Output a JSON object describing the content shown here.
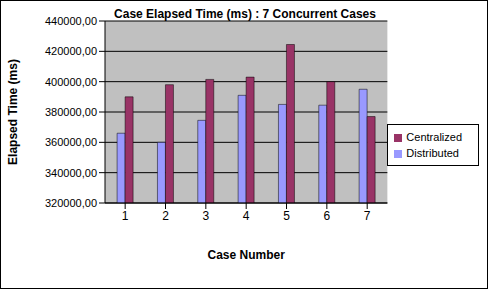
{
  "chart_data": {
    "type": "bar",
    "title": "Case Elapsed Time (ms) : 7 Concurrent Cases",
    "x_label": "Case Number",
    "y_label": "Elapsed Time (ms)",
    "categories": [
      "1",
      "2",
      "3",
      "4",
      "5",
      "6",
      "7"
    ],
    "series": [
      {
        "name": "Distributed",
        "color": "#9999ff",
        "values": [
          366000,
          360000,
          374500,
          391000,
          385000,
          384500,
          395000
        ]
      },
      {
        "name": "Centralized",
        "color": "#993366",
        "values": [
          390000,
          398000,
          401500,
          403000,
          424500,
          400000,
          377000
        ]
      }
    ],
    "ylim": [
      320000,
      440000
    ],
    "yticks": [
      {
        "value": 320000,
        "label": "320000,00"
      },
      {
        "value": 340000,
        "label": "340000,00"
      },
      {
        "value": 360000,
        "label": "360000,00"
      },
      {
        "value": 380000,
        "label": "380000,00"
      },
      {
        "value": 400000,
        "label": "400000,00"
      },
      {
        "value": 420000,
        "label": "420000,00"
      },
      {
        "value": 440000,
        "label": "440000,00"
      }
    ],
    "grid": true,
    "legend": "right"
  }
}
